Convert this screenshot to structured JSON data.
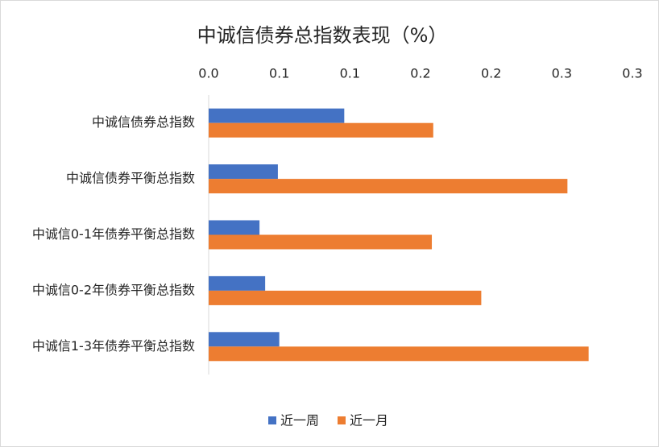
{
  "chart_data": {
    "type": "bar",
    "orientation": "horizontal",
    "title": "中诚信债券总指数表现（%）",
    "categories": [
      "中诚信债券总指数",
      "中诚信债券平衡总指数",
      "中诚信0-1年债券平衡总指数",
      "中诚信0-2年债券平衡总指数",
      "中诚信1-3年债券平衡总指数"
    ],
    "series": [
      {
        "name": "近一周",
        "color": "#4472c4",
        "values": [
          0.096,
          0.049,
          0.036,
          0.04,
          0.05
        ]
      },
      {
        "name": "近一月",
        "color": "#ed7d31",
        "values": [
          0.159,
          0.254,
          0.158,
          0.193,
          0.269
        ]
      }
    ],
    "xlim": [
      0,
      0.3
    ],
    "xticks": [
      {
        "value": 0,
        "label": "0.0"
      },
      {
        "value": 0.05,
        "label": "0.1"
      },
      {
        "value": 0.1,
        "label": "0.1"
      },
      {
        "value": 0.15,
        "label": "0.2"
      },
      {
        "value": 0.2,
        "label": "0.2"
      },
      {
        "value": 0.25,
        "label": "0.3"
      },
      {
        "value": 0.3,
        "label": "0.3"
      }
    ],
    "grid": false,
    "legend": "bottom"
  }
}
